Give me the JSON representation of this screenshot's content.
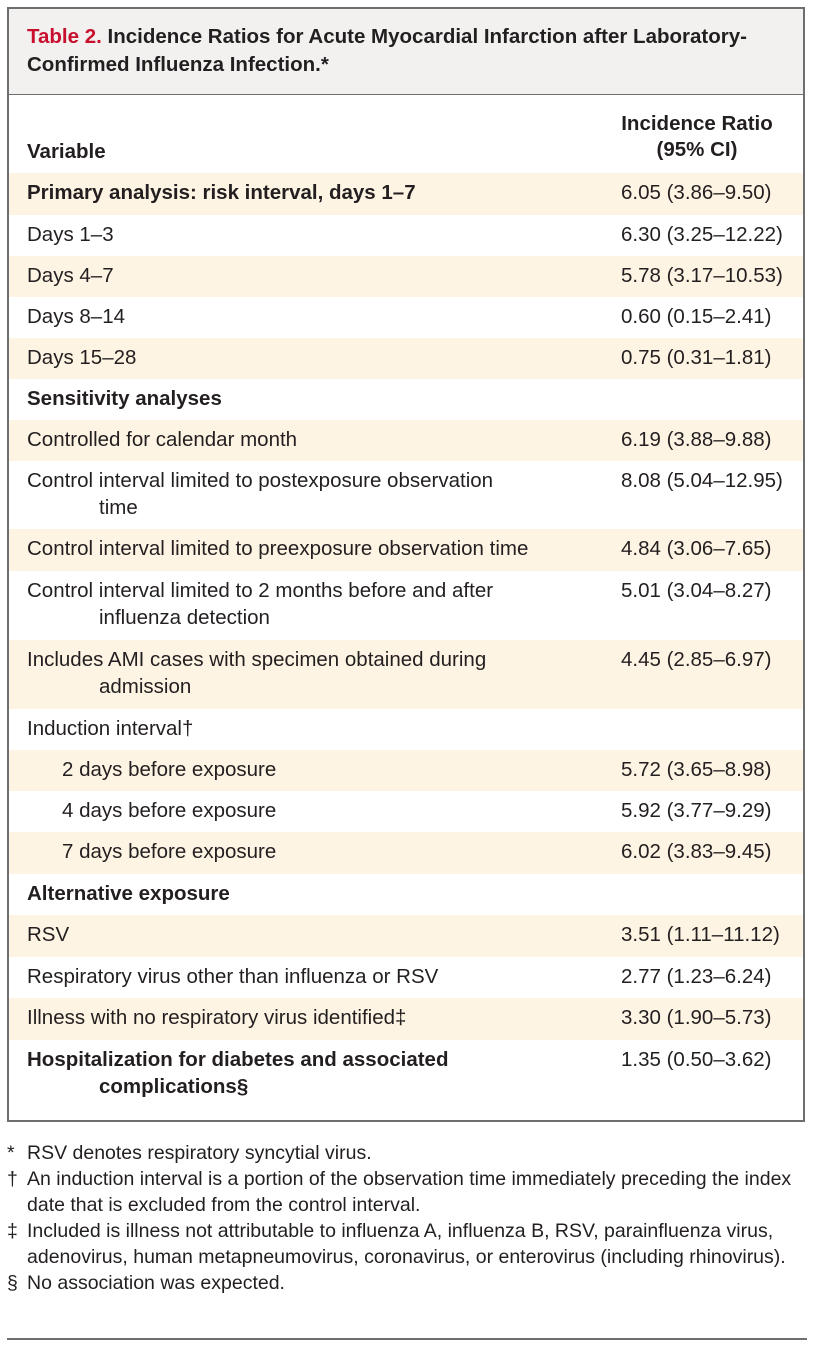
{
  "table": {
    "label": "Table 2.",
    "title": "Incidence Ratios for Acute Myocardial Infarction after Laboratory-Confirmed Influenza Infection.*",
    "col_variable": "Variable",
    "col_ir_line1": "Incidence Ratio",
    "col_ir_line2": "(95% CI)",
    "rows": [
      {
        "label": "Primary analysis: risk interval, days 1–7",
        "value": "6.05 (3.86–9.50)"
      },
      {
        "label": "Days 1–3",
        "value": "6.30 (3.25–12.22)"
      },
      {
        "label": "Days 4–7",
        "value": "5.78 (3.17–10.53)"
      },
      {
        "label": "Days 8–14",
        "value": "0.60 (0.15–2.41)"
      },
      {
        "label": "Days 15–28",
        "value": "0.75 (0.31–1.81)"
      },
      {
        "label": "Sensitivity analyses",
        "value": ""
      },
      {
        "label": "Controlled for calendar month",
        "value": "6.19 (3.88–9.88)"
      },
      {
        "label": "Control interval limited to postexposure observation",
        "label2": "time",
        "value": "8.08 (5.04–12.95)"
      },
      {
        "label": "Control interval limited to preexposure observation time",
        "value": "4.84 (3.06–7.65)"
      },
      {
        "label": "Control interval limited to 2 months before and after",
        "label2": "influenza detection",
        "value": "5.01 (3.04–8.27)"
      },
      {
        "label": "Includes AMI cases with specimen obtained during",
        "label2": "admission",
        "value": "4.45 (2.85–6.97)"
      },
      {
        "label": "Induction interval†",
        "value": ""
      },
      {
        "label": "2 days before exposure",
        "value": "5.72 (3.65–8.98)"
      },
      {
        "label": "4 days before exposure",
        "value": "5.92 (3.77–9.29)"
      },
      {
        "label": "7 days before exposure",
        "value": "6.02 (3.83–9.45)"
      },
      {
        "label": "Alternative exposure",
        "value": ""
      },
      {
        "label": "RSV",
        "value": "3.51 (1.11–11.12)"
      },
      {
        "label": "Respiratory virus other than influenza or RSV",
        "value": "2.77 (1.23–6.24)"
      },
      {
        "label": "Illness with no respiratory virus identified‡",
        "value": "3.30 (1.90–5.73)"
      },
      {
        "label": "Hospitalization for diabetes and associated",
        "label2": "complications§",
        "value": "1.35 (0.50–3.62)"
      }
    ]
  },
  "footnotes": [
    {
      "symbol": "*",
      "text": "RSV denotes respiratory syncytial virus."
    },
    {
      "symbol": "†",
      "text": "An induction interval is a portion of the observation time immediately preceding the index date that is excluded from the control interval."
    },
    {
      "symbol": "‡",
      "text": "Included is illness not attributable to influenza A, influenza B, RSV, parainfluenza virus, adenovirus, human metapneumovirus, coronavirus, or enterovirus (including rhinovirus)."
    },
    {
      "symbol": "§",
      "text": "No association was expected."
    }
  ]
}
